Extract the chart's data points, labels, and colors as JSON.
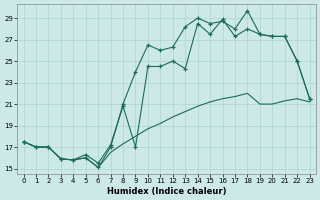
{
  "xlabel": "Humidex (Indice chaleur)",
  "bg_color": "#cce9e7",
  "grid_color": "#aad4d0",
  "line_color": "#1a6b5a",
  "x_min": -0.5,
  "x_max": 23.5,
  "y_min": 14.5,
  "y_max": 30.3,
  "yticks": [
    15,
    17,
    19,
    21,
    23,
    25,
    27,
    29
  ],
  "xticks": [
    0,
    1,
    2,
    3,
    4,
    5,
    6,
    7,
    8,
    9,
    10,
    11,
    12,
    13,
    14,
    15,
    16,
    17,
    18,
    19,
    20,
    21,
    22,
    23
  ],
  "line1_x": [
    0,
    1,
    2,
    3,
    4,
    5,
    6,
    7,
    8,
    9,
    10,
    11,
    12,
    13,
    14,
    15,
    16,
    17,
    18,
    19,
    20,
    21,
    22,
    23
  ],
  "line1_y": [
    17.5,
    17.0,
    17.0,
    15.9,
    15.8,
    16.0,
    15.1,
    17.0,
    21.0,
    24.0,
    26.5,
    26.0,
    26.3,
    28.2,
    29.0,
    28.5,
    28.7,
    28.0,
    29.7,
    27.5,
    27.3,
    27.3,
    25.0,
    21.5
  ],
  "line2_x": [
    0,
    1,
    2,
    3,
    4,
    5,
    6,
    7,
    8,
    9,
    10,
    11,
    12,
    13,
    14,
    15,
    16,
    17,
    18,
    19,
    20,
    21,
    22,
    23
  ],
  "line2_y": [
    17.5,
    17.0,
    17.0,
    15.9,
    15.8,
    16.3,
    15.5,
    17.2,
    20.8,
    17.0,
    24.5,
    24.5,
    25.0,
    24.3,
    28.5,
    27.5,
    28.9,
    27.3,
    28.0,
    27.5,
    27.3,
    27.3,
    25.0,
    21.5
  ],
  "line3_x": [
    0,
    1,
    2,
    3,
    4,
    5,
    6,
    7,
    8,
    9,
    10,
    11,
    12,
    13,
    14,
    15,
    16,
    17,
    18,
    19,
    20,
    21,
    22,
    23
  ],
  "line3_y": [
    17.5,
    17.0,
    17.0,
    15.9,
    15.8,
    16.0,
    15.1,
    16.5,
    17.3,
    18.0,
    18.7,
    19.2,
    19.8,
    20.3,
    20.8,
    21.2,
    21.5,
    21.7,
    22.0,
    21.0,
    21.0,
    21.3,
    21.5,
    21.2
  ]
}
